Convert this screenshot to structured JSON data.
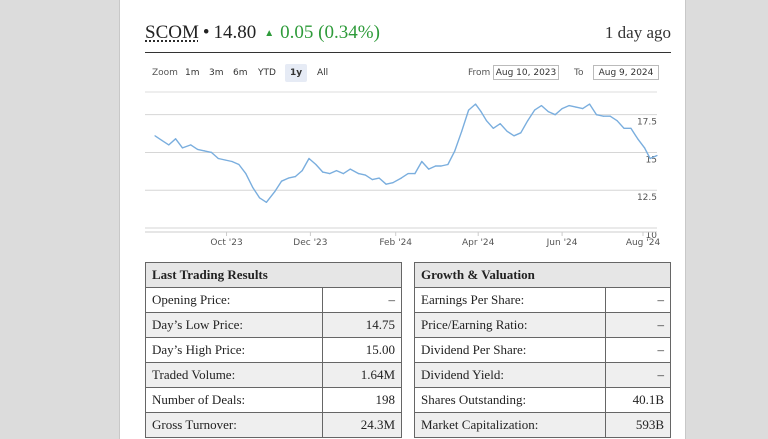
{
  "quote": {
    "ticker": "SCOM",
    "bullet": "•",
    "price": "14.80",
    "change": "0.05 (0.34%)",
    "direction_icon": "triangle-up-icon",
    "updated": "1 day ago",
    "accent_color": "#2e9b3a"
  },
  "controls": {
    "zoom_label": "Zoom",
    "zoom_options": [
      "1m",
      "3m",
      "6m",
      "YTD",
      "1y",
      "All"
    ],
    "active_zoom": "1y",
    "from_label": "From",
    "from_value": "Aug 10, 2023",
    "to_label": "To",
    "to_value": "Aug 9, 2024"
  },
  "chart_data": {
    "type": "line",
    "series_color": "#7aaede",
    "x_tick_labels": [
      "Oct '23",
      "Dec '23",
      "Feb '24",
      "Apr '24",
      "Jun '24",
      "Aug '24"
    ],
    "y_tick_labels": [
      "10",
      "12.5",
      "15",
      "17.5"
    ],
    "ylim": [
      10,
      19
    ],
    "grid": true,
    "x": [
      "2023-08-10",
      "2023-08-15",
      "2023-08-20",
      "2023-08-25",
      "2023-08-30",
      "2023-09-05",
      "2023-09-10",
      "2023-09-15",
      "2023-09-20",
      "2023-09-25",
      "2023-09-30",
      "2023-10-05",
      "2023-10-10",
      "2023-10-15",
      "2023-10-20",
      "2023-10-25",
      "2023-10-30",
      "2023-11-05",
      "2023-11-10",
      "2023-11-15",
      "2023-11-20",
      "2023-11-25",
      "2023-11-30",
      "2023-12-05",
      "2023-12-10",
      "2023-12-15",
      "2023-12-20",
      "2023-12-25",
      "2023-12-30",
      "2024-01-05",
      "2024-01-10",
      "2024-01-15",
      "2024-01-20",
      "2024-01-25",
      "2024-01-30",
      "2024-02-05",
      "2024-02-10",
      "2024-02-15",
      "2024-02-20",
      "2024-02-25",
      "2024-03-01",
      "2024-03-05",
      "2024-03-10",
      "2024-03-15",
      "2024-03-20",
      "2024-03-25",
      "2024-03-30",
      "2024-04-03",
      "2024-04-07",
      "2024-04-12",
      "2024-04-17",
      "2024-04-22",
      "2024-04-27",
      "2024-05-02",
      "2024-05-07",
      "2024-05-12",
      "2024-05-17",
      "2024-05-22",
      "2024-05-27",
      "2024-06-01",
      "2024-06-06",
      "2024-06-11",
      "2024-06-16",
      "2024-06-21",
      "2024-06-26",
      "2024-07-01",
      "2024-07-06",
      "2024-07-11",
      "2024-07-16",
      "2024-07-21",
      "2024-07-26",
      "2024-07-31",
      "2024-08-04",
      "2024-08-09"
    ],
    "values": [
      16.1,
      15.8,
      15.5,
      15.9,
      15.3,
      15.5,
      15.2,
      15.1,
      15.0,
      14.6,
      14.5,
      14.4,
      14.2,
      13.6,
      12.7,
      12.0,
      11.7,
      12.4,
      13.1,
      13.3,
      13.4,
      13.8,
      14.6,
      14.2,
      13.7,
      13.6,
      13.8,
      13.6,
      13.9,
      13.6,
      13.5,
      13.2,
      13.3,
      12.9,
      13.0,
      13.3,
      13.6,
      13.6,
      14.4,
      13.9,
      14.1,
      14.1,
      14.2,
      15.1,
      16.4,
      17.8,
      18.2,
      17.7,
      17.1,
      16.6,
      16.9,
      16.4,
      16.1,
      16.3,
      17.1,
      17.8,
      18.1,
      17.7,
      17.5,
      17.9,
      18.1,
      18.0,
      17.9,
      18.2,
      17.5,
      17.4,
      17.4,
      17.1,
      16.6,
      16.6,
      15.9,
      15.3,
      14.6,
      14.8
    ]
  },
  "tables": {
    "left": {
      "title": "Last Trading Results",
      "rows": [
        {
          "label": "Opening Price:",
          "value": "–"
        },
        {
          "label": "Day’s Low Price:",
          "value": "14.75"
        },
        {
          "label": "Day’s High Price:",
          "value": "15.00"
        },
        {
          "label": "Traded Volume:",
          "value": "1.64M"
        },
        {
          "label": "Number of Deals:",
          "value": "198"
        },
        {
          "label": "Gross Turnover:",
          "value": "24.3M"
        }
      ]
    },
    "right": {
      "title": "Growth & Valuation",
      "rows": [
        {
          "label": "Earnings Per Share:",
          "value": "–"
        },
        {
          "label": "Price/Earning Ratio:",
          "value": "–"
        },
        {
          "label": "Dividend Per Share:",
          "value": "–"
        },
        {
          "label": "Dividend Yield:",
          "value": "–"
        },
        {
          "label": "Shares Outstanding:",
          "value": "40.1B"
        },
        {
          "label": "Market Capitalization:",
          "value": "593B"
        }
      ]
    }
  }
}
